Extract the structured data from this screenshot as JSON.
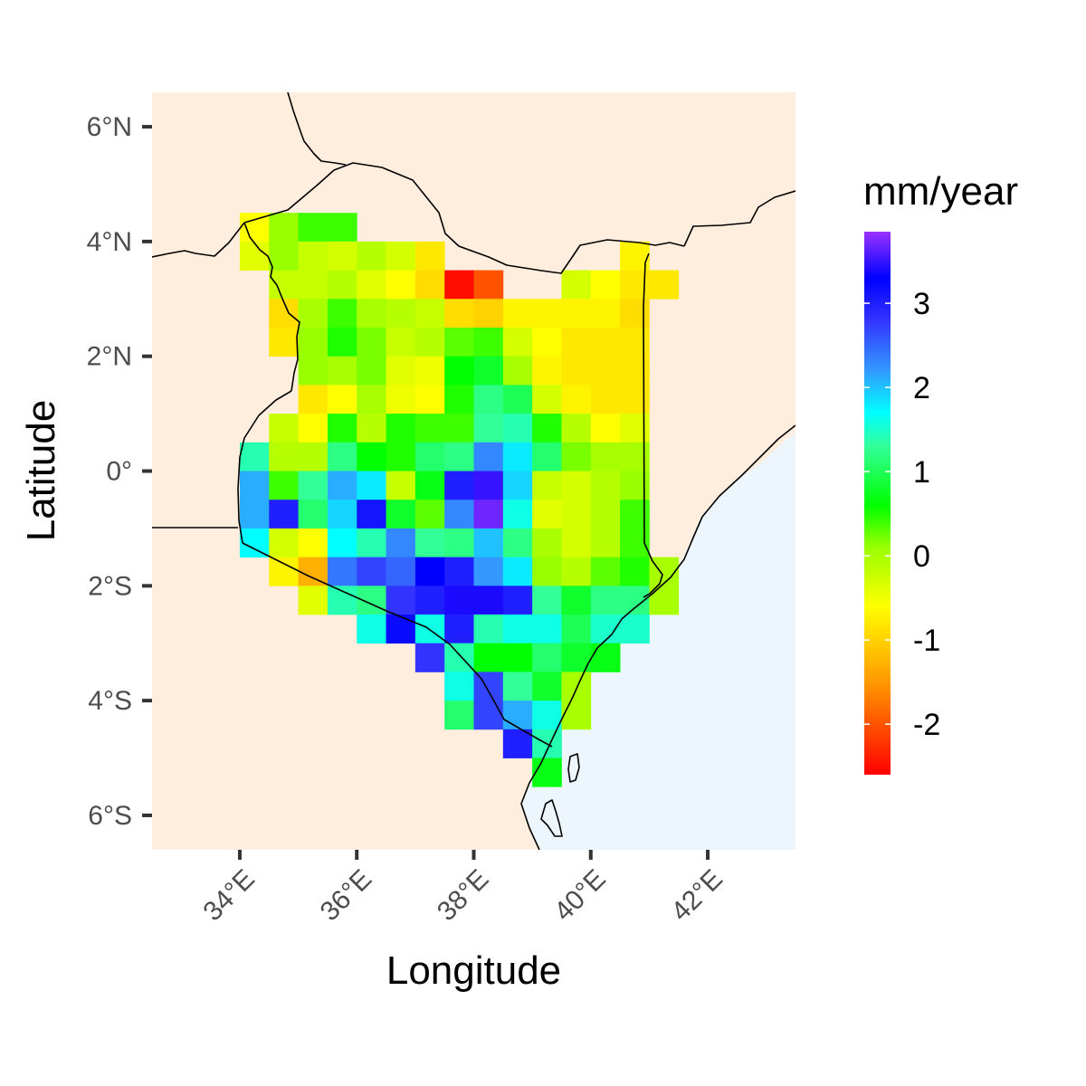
{
  "chart_data": {
    "type": "heatmap",
    "title": "",
    "xlabel": "Longitude",
    "ylabel": "Latitude",
    "xlim": [
      32.5,
      43.5
    ],
    "ylim": [
      -6.6,
      6.6
    ],
    "x_ticks": [
      {
        "value": 34,
        "label": "34°E"
      },
      {
        "value": 36,
        "label": "36°E"
      },
      {
        "value": 38,
        "label": "38°E"
      },
      {
        "value": 40,
        "label": "40°E"
      },
      {
        "value": 42,
        "label": "42°E"
      }
    ],
    "y_ticks": [
      {
        "value": 6,
        "label": "6°N"
      },
      {
        "value": 4,
        "label": "4°N"
      },
      {
        "value": 2,
        "label": "2°N"
      },
      {
        "value": 0,
        "label": "0°"
      },
      {
        "value": -2,
        "label": "2°S"
      },
      {
        "value": -4,
        "label": "4°S"
      },
      {
        "value": -6,
        "label": "6°S"
      }
    ],
    "grid": false,
    "cell_size_deg": 0.5,
    "x_origin_lon": 34.25,
    "y_origin_lat": 4.25,
    "value_grid_rows_north_to_south": [
      [
        -0.6,
        0.1,
        0.4,
        0.4,
        null,
        null,
        null,
        null,
        null,
        null,
        null,
        null,
        null,
        null,
        null,
        null
      ],
      [
        -0.4,
        0.1,
        -0.2,
        -0.3,
        -0.1,
        -0.3,
        -0.8,
        null,
        null,
        null,
        null,
        null,
        null,
        -0.7,
        null,
        null
      ],
      [
        null,
        -0.2,
        -0.2,
        -0.1,
        -0.4,
        -0.6,
        -0.9,
        -2.5,
        -2.0,
        null,
        null,
        -0.3,
        -0.6,
        -0.8,
        -0.8,
        null
      ],
      [
        null,
        -0.9,
        0.0,
        0.4,
        0.0,
        -0.1,
        -0.2,
        -0.9,
        -1.0,
        -0.7,
        -0.7,
        -0.7,
        -0.7,
        -0.9,
        null,
        null
      ],
      [
        null,
        -0.8,
        0.1,
        0.5,
        0.2,
        -0.2,
        -0.1,
        0.3,
        0.4,
        -0.3,
        -0.6,
        -0.8,
        -0.8,
        -0.8,
        null,
        null
      ],
      [
        null,
        null,
        0.1,
        0.0,
        0.2,
        -0.4,
        -0.5,
        0.6,
        0.8,
        0.0,
        -0.7,
        -0.8,
        -0.8,
        -0.8,
        null,
        null
      ],
      [
        null,
        null,
        -0.8,
        -0.6,
        0.0,
        -0.5,
        -0.6,
        0.5,
        1.2,
        1.0,
        -0.3,
        -0.7,
        -0.8,
        -0.8,
        null,
        null
      ],
      [
        null,
        -0.2,
        -0.6,
        0.5,
        -0.1,
        0.5,
        0.4,
        0.4,
        1.3,
        1.4,
        0.5,
        -0.1,
        -0.6,
        -0.4,
        null,
        null
      ],
      [
        1.4,
        -0.1,
        -0.1,
        1.2,
        0.6,
        0.5,
        1.1,
        1.2,
        2.3,
        1.8,
        1.1,
        0.2,
        0.0,
        0.0,
        null,
        null
      ],
      [
        2.1,
        0.4,
        1.3,
        2.1,
        1.8,
        -0.2,
        0.7,
        3.0,
        3.5,
        1.9,
        -0.2,
        -0.3,
        -0.1,
        0.1,
        null,
        null
      ],
      [
        2.1,
        3.0,
        1.1,
        1.9,
        3.1,
        0.8,
        0.3,
        2.3,
        3.7,
        1.6,
        -0.4,
        -0.3,
        -0.1,
        0.4,
        null,
        null
      ],
      [
        1.7,
        -0.3,
        -0.6,
        1.7,
        1.4,
        2.3,
        1.3,
        1.2,
        2.0,
        1.2,
        0.0,
        -0.3,
        -0.1,
        0.4,
        null,
        null
      ],
      [
        null,
        -0.7,
        -1.3,
        2.4,
        2.7,
        2.5,
        3.3,
        3.0,
        2.2,
        1.8,
        0.1,
        -0.1,
        0.3,
        0.5,
        0.0,
        null
      ],
      [
        null,
        null,
        -0.4,
        1.4,
        1.2,
        2.8,
        3.0,
        3.4,
        3.4,
        3.0,
        1.3,
        0.8,
        1.2,
        1.2,
        0.0,
        null
      ],
      [
        null,
        null,
        null,
        null,
        1.6,
        3.2,
        1.6,
        3.0,
        1.4,
        1.6,
        1.6,
        1.0,
        1.5,
        1.5,
        null,
        null
      ],
      [
        null,
        null,
        null,
        null,
        null,
        null,
        2.8,
        1.4,
        0.6,
        0.6,
        1.1,
        0.8,
        0.7,
        null,
        null,
        null
      ],
      [
        null,
        null,
        null,
        null,
        null,
        null,
        null,
        1.6,
        2.7,
        1.3,
        0.8,
        0.0,
        null,
        null,
        null,
        null
      ],
      [
        null,
        null,
        null,
        null,
        null,
        null,
        null,
        1.1,
        2.7,
        2.1,
        1.6,
        0.0,
        null,
        null,
        null,
        null
      ],
      [
        null,
        null,
        null,
        null,
        null,
        null,
        null,
        null,
        null,
        3.0,
        1.4,
        null,
        null,
        null,
        null,
        null
      ],
      [
        null,
        null,
        null,
        null,
        null,
        null,
        null,
        null,
        null,
        null,
        0.7,
        null,
        null,
        null,
        null,
        null
      ]
    ],
    "color_scale": {
      "title": "mm/year",
      "min": -2.6,
      "max": 3.85,
      "stops": [
        {
          "value": -2.6,
          "color": "#ff0000"
        },
        {
          "value": -1.5,
          "color": "#ff9900"
        },
        {
          "value": -0.6,
          "color": "#ffff00"
        },
        {
          "value": 0.1,
          "color": "#99ff00"
        },
        {
          "value": 0.6,
          "color": "#00ff00"
        },
        {
          "value": 1.3,
          "color": "#33ff99"
        },
        {
          "value": 1.7,
          "color": "#00ffff"
        },
        {
          "value": 2.2,
          "color": "#3399ff"
        },
        {
          "value": 2.8,
          "color": "#3333ff"
        },
        {
          "value": 3.3,
          "color": "#0000ff"
        },
        {
          "value": 3.85,
          "color": "#9933ff"
        }
      ],
      "ticks": [
        {
          "value": 3,
          "label": "3"
        },
        {
          "value": 2,
          "label": "2"
        },
        {
          "value": 1,
          "label": "1"
        },
        {
          "value": 0,
          "label": "0"
        },
        {
          "value": -1,
          "label": "-1"
        },
        {
          "value": -2,
          "label": "-2"
        }
      ]
    },
    "colors": {
      "land": "#ffeedd",
      "ocean": "#eef6fd",
      "border": "#000000"
    }
  }
}
